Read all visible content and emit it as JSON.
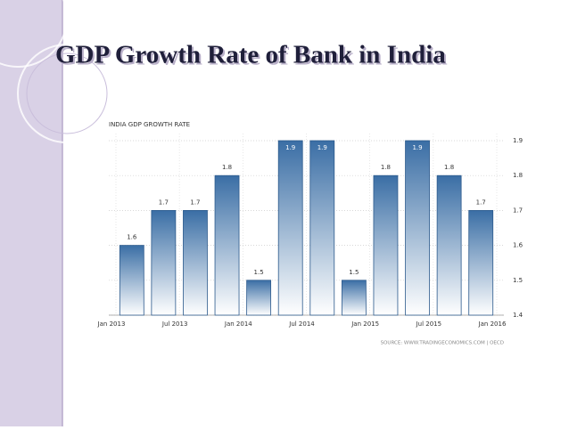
{
  "slide_title": "GDP Growth Rate of Bank in India",
  "chart_data": {
    "type": "bar",
    "title": "INDIA GDP GROWTH RATE",
    "source": "SOURCE: WWW.TRADINGECONOMICS.COM | OECD",
    "values": [
      1.6,
      1.7,
      1.7,
      1.8,
      1.5,
      1.9,
      1.9,
      1.5,
      1.8,
      1.9,
      1.8,
      1.7
    ],
    "xticks": [
      "Jan 2013",
      "Jul 2013",
      "Jan 2014",
      "Jul 2014",
      "Jan 2015",
      "Jul 2015",
      "Jan 2016"
    ],
    "color": "#3a6ea5",
    "ylim": [
      1.4,
      1.9
    ],
    "yticks": [
      1.4,
      1.5,
      1.6,
      1.7,
      1.8,
      1.9
    ],
    "grid": true
  }
}
